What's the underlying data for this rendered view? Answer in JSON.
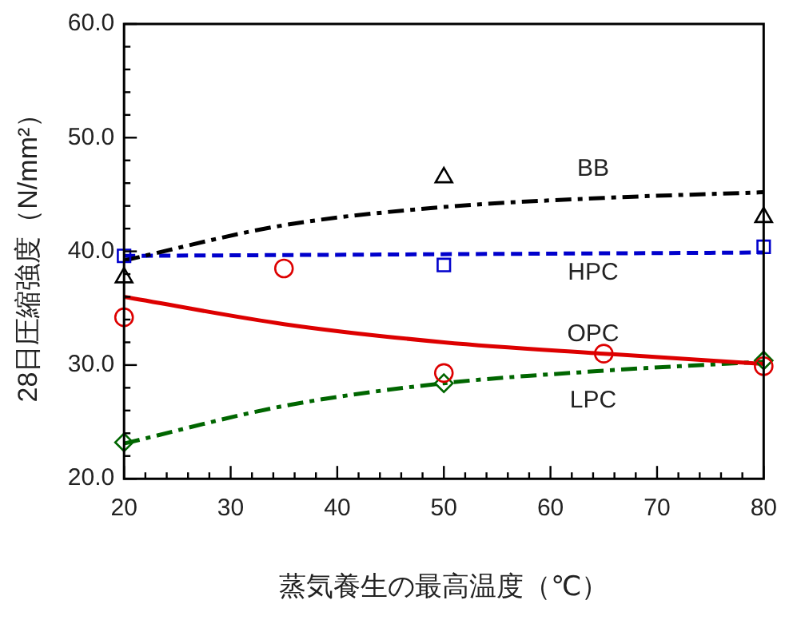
{
  "chart_data": {
    "type": "scatter",
    "xlabel": "蒸気養生の最高温度（℃）",
    "ylabel": "28日圧縮強度（N/mm²）",
    "xlim": [
      20,
      80
    ],
    "xticks": [
      20,
      {
        "value": 22,
        "label": null
      },
      {
        "value": 24,
        "label": null
      },
      {
        "value": 26,
        "label": null
      },
      {
        "value": 28,
        "label": null
      },
      30,
      {
        "value": 32,
        "label": null
      },
      {
        "value": 34,
        "label": null
      },
      {
        "value": 36,
        "label": null
      },
      {
        "value": 38,
        "label": null
      },
      40,
      {
        "value": 42,
        "label": null
      },
      {
        "value": 44,
        "label": null
      },
      {
        "value": 46,
        "label": null
      },
      {
        "value": 48,
        "label": null
      },
      50,
      {
        "value": 52,
        "label": null
      },
      {
        "value": 54,
        "label": null
      },
      {
        "value": 56,
        "label": null
      },
      {
        "value": 58,
        "label": null
      },
      60,
      {
        "value": 62,
        "label": null
      },
      {
        "value": 64,
        "label": null
      },
      {
        "value": 66,
        "label": null
      },
      {
        "value": 68,
        "label": null
      },
      70,
      {
        "value": 72,
        "label": null
      },
      {
        "value": 74,
        "label": null
      },
      {
        "value": 76,
        "label": null
      },
      {
        "value": 78,
        "label": null
      },
      80
    ],
    "ylim": [
      20,
      60
    ],
    "yticks": [
      {
        "value": 20,
        "label": "20.0"
      },
      {
        "value": 22,
        "label": null
      },
      {
        "value": 24,
        "label": null
      },
      {
        "value": 26,
        "label": null
      },
      {
        "value": 28,
        "label": null
      },
      {
        "value": 30,
        "label": "30.0"
      },
      {
        "value": 32,
        "label": null
      },
      {
        "value": 34,
        "label": null
      },
      {
        "value": 36,
        "label": null
      },
      {
        "value": 38,
        "label": null
      },
      {
        "value": 40,
        "label": "40.0"
      },
      {
        "value": 42,
        "label": null
      },
      {
        "value": 44,
        "label": null
      },
      {
        "value": 46,
        "label": null
      },
      {
        "value": 48,
        "label": null
      },
      {
        "value": 50,
        "label": "50.0"
      },
      {
        "value": 52,
        "label": null
      },
      {
        "value": 54,
        "label": null
      },
      {
        "value": 56,
        "label": null
      },
      {
        "value": 58,
        "label": null
      },
      {
        "value": 60,
        "label": "60.0"
      }
    ],
    "grid": false,
    "legend": false,
    "series": [
      {
        "type": "line",
        "name": "BB",
        "color": "#000000",
        "line_style": "dashdot",
        "marker": "none",
        "x": [
          20,
          35,
          50,
          65,
          80
        ],
        "values": [
          39.2,
          42.3,
          43.9,
          44.7,
          45.2
        ]
      },
      {
        "type": "line",
        "name": "HPC",
        "color": "#0000cc",
        "line_style": "dashed",
        "marker": "none",
        "x": [
          20,
          80
        ],
        "values": [
          39.6,
          39.9
        ]
      },
      {
        "type": "line",
        "name": "OPC",
        "color": "#dd0000",
        "line_style": "solid",
        "marker": "none",
        "x": [
          20,
          35,
          50,
          65,
          80
        ],
        "values": [
          36.0,
          33.6,
          32.0,
          31.0,
          30.1
        ]
      },
      {
        "type": "line",
        "name": "LPC",
        "color": "#006600",
        "line_style": "dashdot",
        "marker": "none",
        "x": [
          20,
          35,
          50,
          65,
          80
        ],
        "values": [
          23.1,
          26.4,
          28.4,
          29.5,
          30.3
        ]
      },
      {
        "color": "#000000",
        "marker": "triangle",
        "x": [
          20,
          50,
          80
        ],
        "values": [
          37.7,
          46.5,
          43.0
        ]
      },
      {
        "color": "#0000cc",
        "marker": "square",
        "x": [
          20,
          50,
          80
        ],
        "values": [
          39.6,
          38.8,
          40.4
        ]
      },
      {
        "color": "#dd0000",
        "marker": "circle",
        "x": [
          20,
          35,
          50,
          65,
          80
        ],
        "values": [
          34.2,
          38.5,
          29.3,
          31.0,
          29.9
        ]
      },
      {
        "color": "#006600",
        "marker": "diamond",
        "x": [
          20,
          50,
          80
        ],
        "values": [
          23.2,
          28.4,
          30.4
        ]
      }
    ]
  }
}
